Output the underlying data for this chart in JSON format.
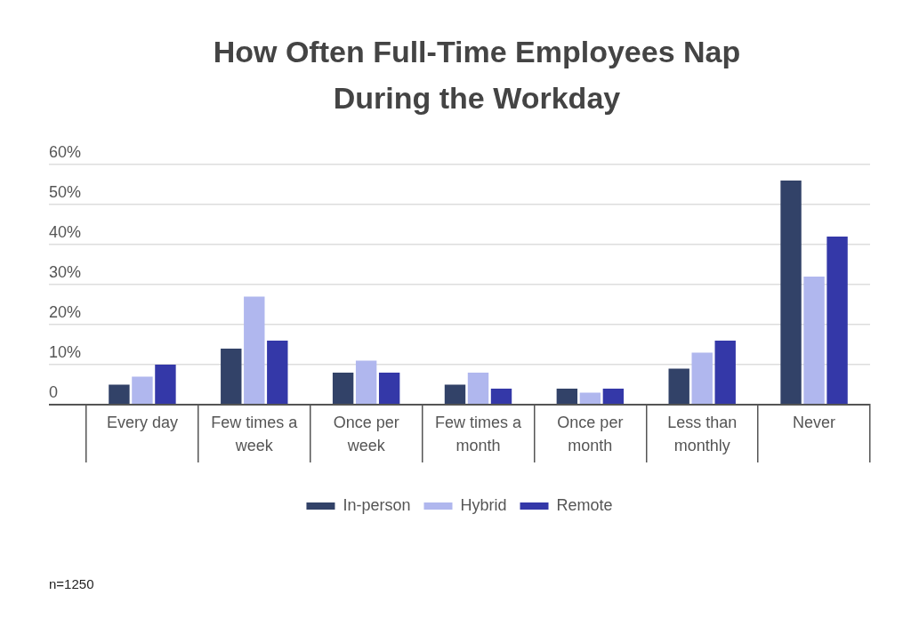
{
  "chart_data": {
    "type": "bar",
    "title": "How Often Full-Time Employees Nap During the Workday",
    "categories": [
      "Every day",
      "Few times a week",
      "Once per week",
      "Few times a month",
      "Once per month",
      "Less than monthly",
      "Never"
    ],
    "series": [
      {
        "name": "In-person",
        "color": "#324268",
        "values": [
          5,
          14,
          8,
          5,
          4,
          9,
          56
        ]
      },
      {
        "name": "Hybrid",
        "color": "#b0b7ee",
        "values": [
          7,
          27,
          11,
          8,
          3,
          13,
          32
        ]
      },
      {
        "name": "Remote",
        "color": "#3438a8",
        "values": [
          10,
          16,
          8,
          4,
          4,
          16,
          42
        ]
      }
    ],
    "ylim": [
      0,
      60
    ],
    "yticks": [
      0,
      {
        "value": 10,
        "label": "10%"
      },
      {
        "value": 20,
        "label": "20%"
      },
      {
        "value": 30,
        "label": "30%"
      },
      {
        "value": 40,
        "label": "40%"
      },
      {
        "value": 50,
        "label": "50%"
      },
      {
        "value": 60,
        "label": "60%"
      }
    ],
    "grid": "y",
    "legend": "bottom",
    "annotations": [
      "n=1250"
    ]
  }
}
